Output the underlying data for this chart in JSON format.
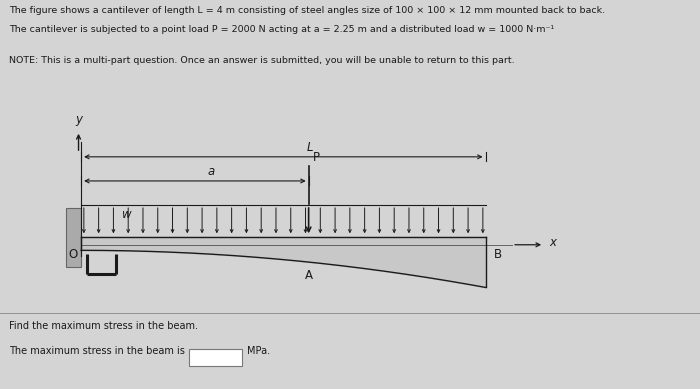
{
  "title_line1": "The figure shows a cantilever of length L = 4 m consisting of steel angles size of 100 × 100 × 12 mm mounted back to back.",
  "title_line2": "The cantilever is subjected to a point load P = 2000 N acting at a = 2.25 m and a distributed load w = 1000 N·m⁻¹",
  "note_line": "NOTE: This is a multi-part question. Once an answer is submitted, you will be unable to return to this part.",
  "question_line": "Find the maximum stress in the beam.",
  "answer_line": "The maximum stress in the beam is",
  "answer_unit": "MPa.",
  "bg_color": "#d4d4d4",
  "panel_bg": "#dcdcdc",
  "text_color": "#1a1a1a",
  "beam_color": "#1a1a1a"
}
